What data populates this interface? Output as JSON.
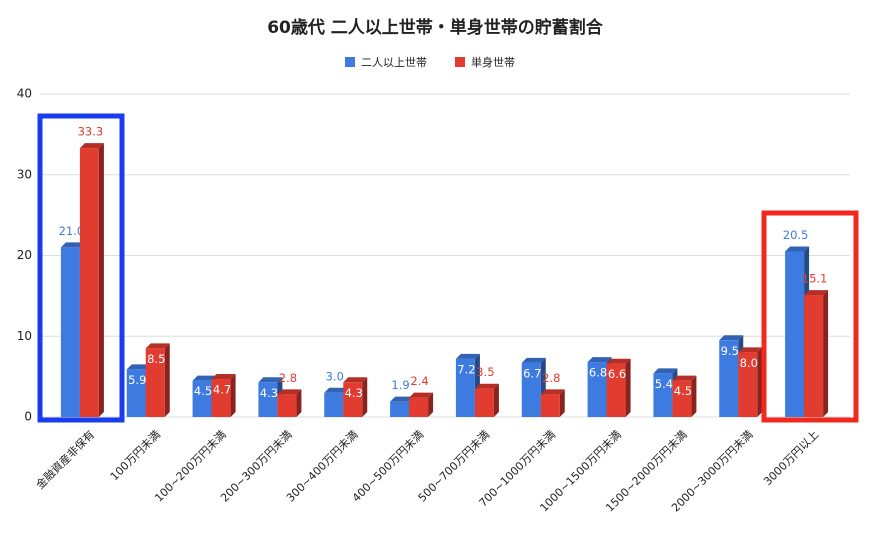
{
  "chart_data": {
    "type": "bar",
    "title": "60歳代 二人以上世帯・単身世帯の貯蓄割合",
    "categories": [
      "金融資産非保有",
      "100万円未満",
      "100~200万円未満",
      "200~300万円未満",
      "300~400万円未満",
      "400~500万円未満",
      "500~700万円未満",
      "700~1000万円未満",
      "1000~1500万円未満",
      "1500~2000万円未満",
      "2000~3000万円未満",
      "3000万円以上"
    ],
    "series": [
      {
        "name": "二人以上世帯",
        "color": "#3d7be0",
        "values": [
          21.0,
          5.9,
          4.5,
          4.3,
          3.0,
          1.9,
          7.2,
          6.7,
          6.8,
          5.4,
          9.5,
          20.5
        ],
        "value_labels": [
          "21.0",
          "5.9",
          "4.5",
          "4.3",
          "3.0",
          "1.9",
          "7.2",
          "6.7",
          "6.8",
          "5.4",
          "9.5",
          "20.5"
        ]
      },
      {
        "name": "単身世帯",
        "color": "#e23b30",
        "values": [
          33.3,
          8.5,
          4.7,
          2.8,
          4.3,
          2.4,
          3.5,
          2.8,
          6.6,
          4.5,
          8.0,
          15.1
        ],
        "value_labels": [
          "33.3",
          "8.5",
          "4.7",
          "2.8",
          "4.3",
          "2.4",
          "3.5",
          "2.8",
          "6.6",
          "4.5",
          "8.0",
          "15.1"
        ]
      }
    ],
    "ylim": [
      0,
      40
    ],
    "yticks": [
      0,
      10,
      20,
      30,
      40
    ],
    "grid": true,
    "legend": "top"
  }
}
